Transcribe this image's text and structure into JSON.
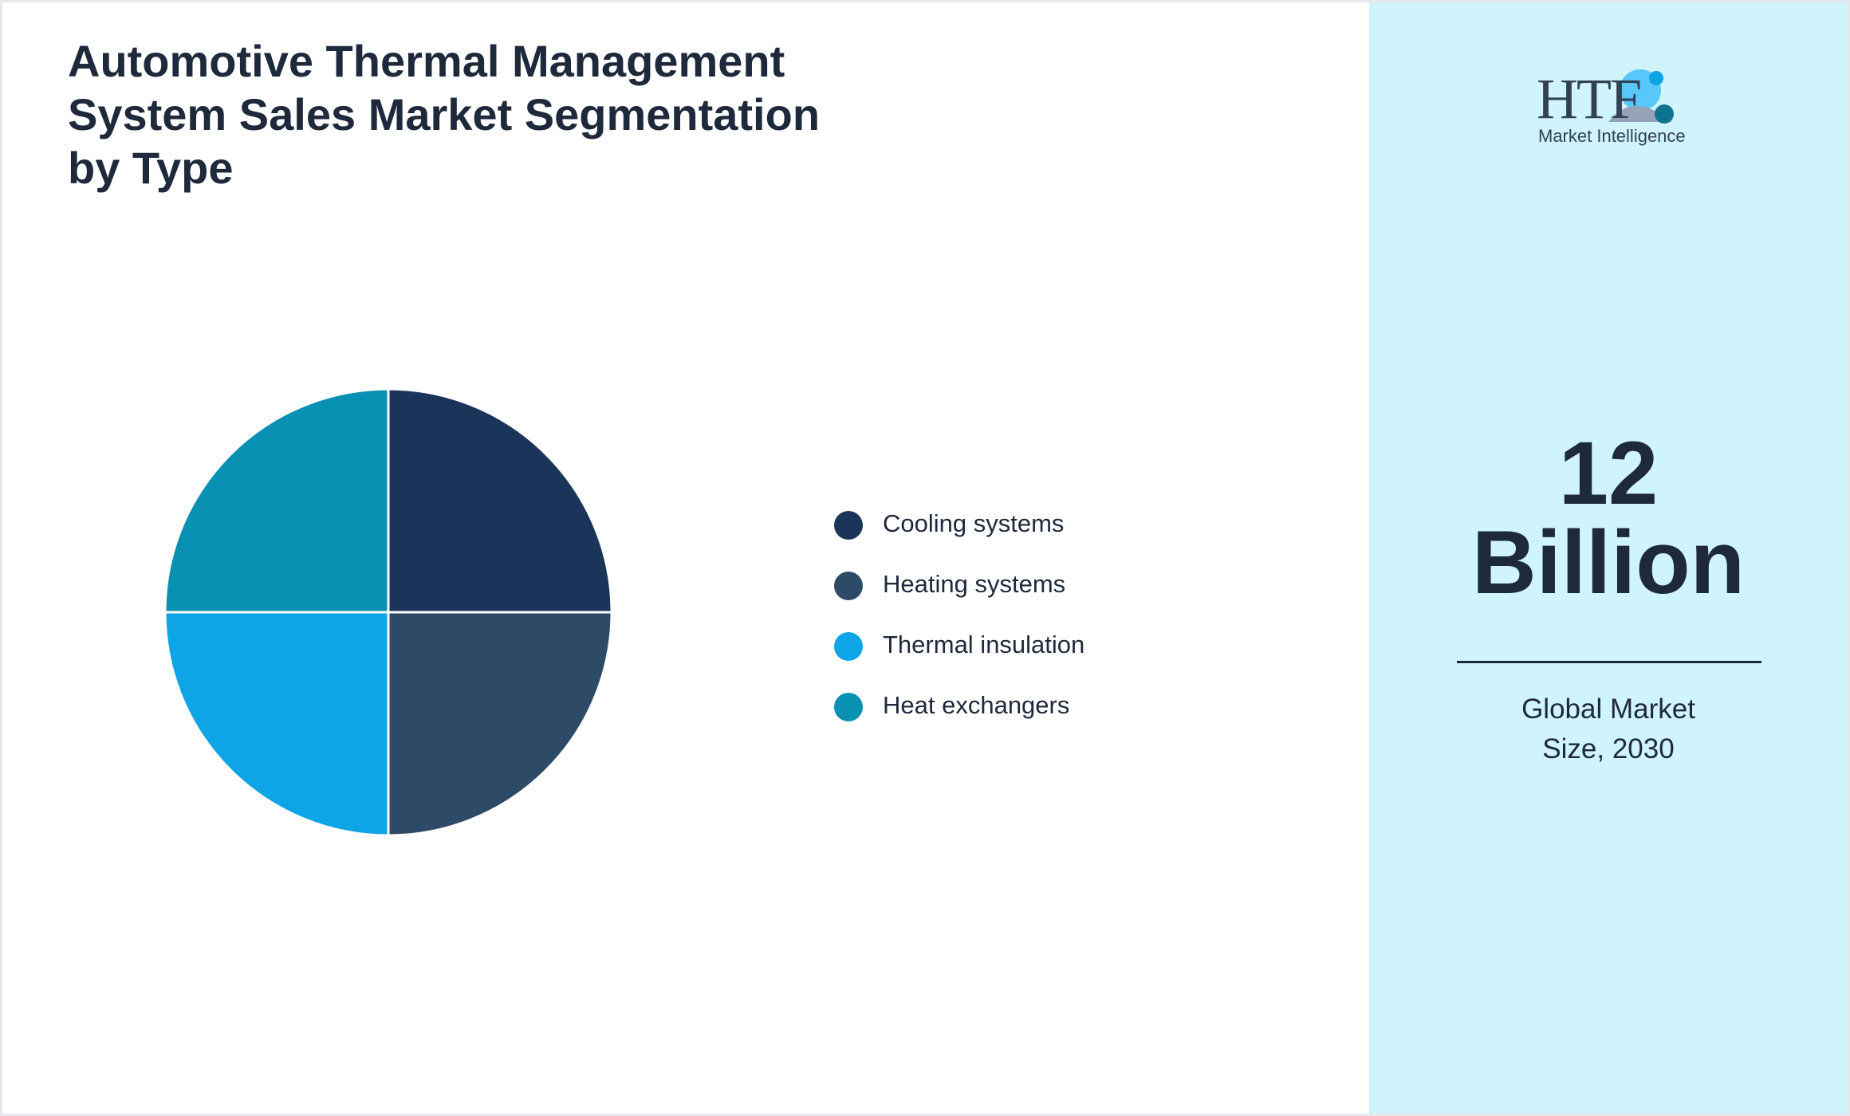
{
  "chart_data": {
    "type": "pie",
    "title": "Automotive Thermal Management System Sales Market Segmentation by Type",
    "categories": [
      "Cooling systems",
      "Heating systems",
      "Thermal insulation",
      "Heat exchangers"
    ],
    "values": [
      25,
      25,
      25,
      25
    ],
    "colors": [
      "#1b355a",
      "#2d4a66",
      "#0ea5e6",
      "#0891b2"
    ]
  },
  "logo": {
    "brand": "HTF",
    "tagline": "Market Intelligence"
  },
  "highlight": {
    "value": "12 Billion",
    "caption": "Global Market Size, 2030"
  }
}
